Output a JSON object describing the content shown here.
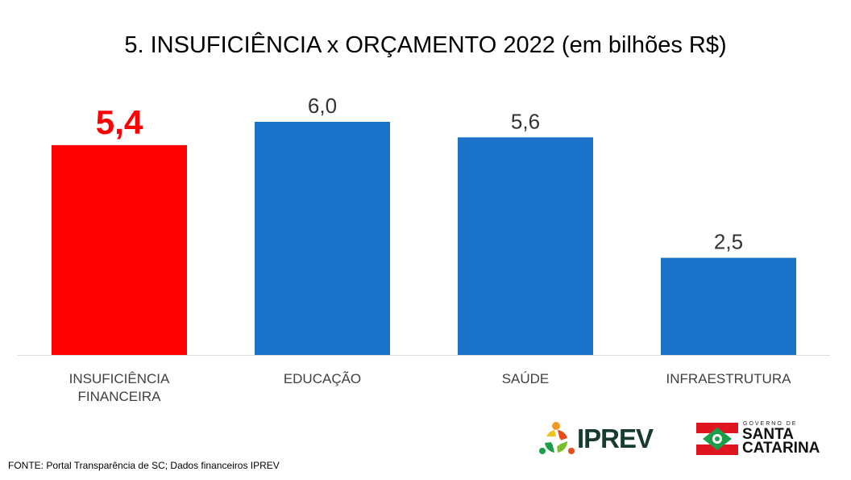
{
  "header": {
    "title": "5. INSUFICIÊNCIA x ORÇAMENTO 2022 (em bilhões R$)"
  },
  "chart_data": {
    "type": "bar",
    "categories": [
      "INSUFICIÊNCIA FINANCEIRA",
      "EDUCAÇÃO",
      "SAÚDE",
      "INFRAESTRUTURA"
    ],
    "category_lines": [
      [
        "INSUFICIÊNCIA",
        "FINANCEIRA"
      ],
      [
        "EDUCAÇÃO"
      ],
      [
        "SAÚDE"
      ],
      [
        "INFRAESTRUTURA"
      ]
    ],
    "values": [
      5.4,
      6.0,
      5.6,
      2.5
    ],
    "data_labels": [
      "5,4",
      "6,0",
      "5,6",
      "2,5"
    ],
    "colors": [
      "#ff0000",
      "#1a73c9",
      "#1a73c9",
      "#1a73c9"
    ],
    "label_colors": [
      "#ff0000",
      "#333333",
      "#333333",
      "#333333"
    ],
    "highlight_index": 0,
    "title": "5. INSUFICIÊNCIA x ORÇAMENTO 2022 (em bilhões R$)",
    "xlabel": "",
    "ylabel": "",
    "ylim": [
      0,
      6.0
    ],
    "grid": false,
    "legend": "none"
  },
  "footer": {
    "source": "FONTE: Portal Transparência de SC; Dados financeiros IPREV"
  },
  "logos": {
    "iprev": {
      "text": "IPREV",
      "icon": "iprev-circle-icon"
    },
    "santa_catarina": {
      "small_text": "GOVERNO DE",
      "line1": "SANTA",
      "line2": "CATARINA",
      "icon": "sc-flag-icon"
    }
  }
}
